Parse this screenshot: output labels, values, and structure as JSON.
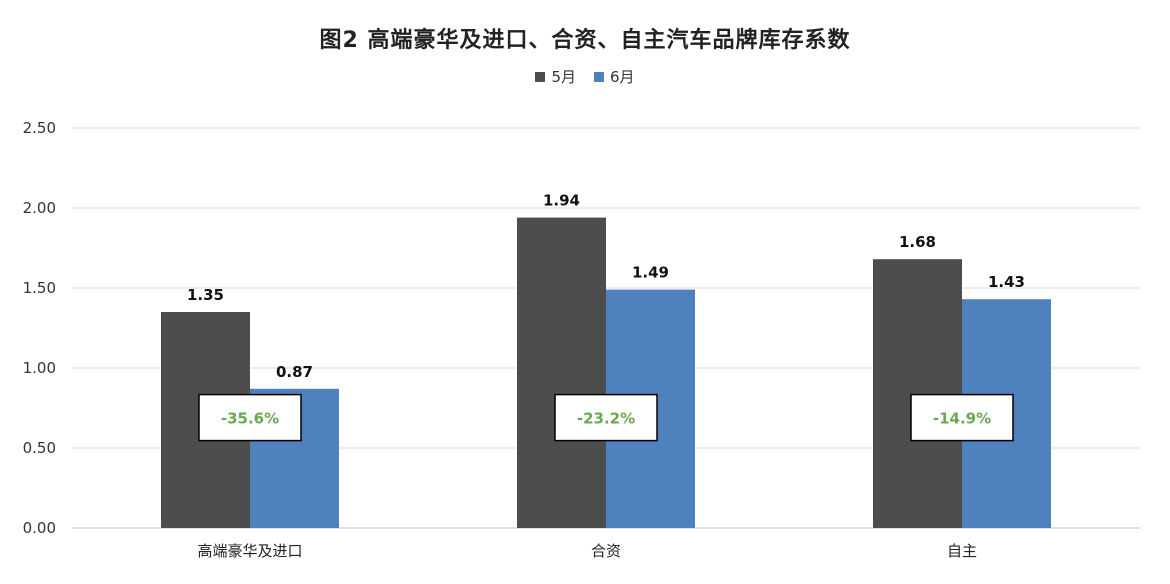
{
  "chart_data": {
    "type": "bar",
    "title": "图2  高端豪华及进口、合资、自主汽车品牌库存系数",
    "categories": [
      "高端豪华及进口",
      "合资",
      "自主"
    ],
    "series": [
      {
        "name": "5月",
        "values": [
          1.35,
          1.94,
          1.68
        ],
        "color": "#4d4d4d"
      },
      {
        "name": "6月",
        "values": [
          0.87,
          1.49,
          1.43
        ],
        "color": "#4f81bd"
      }
    ],
    "ylim": [
      0,
      2.5
    ],
    "yticks": [
      "0.00",
      "0.50",
      "1.00",
      "1.50",
      "2.00",
      "2.50"
    ],
    "grid": true,
    "legend": "top-center",
    "annotations": [
      "-35.6%",
      "-23.2%",
      "-14.9%"
    ],
    "annotation_color": "#6aa84f"
  }
}
